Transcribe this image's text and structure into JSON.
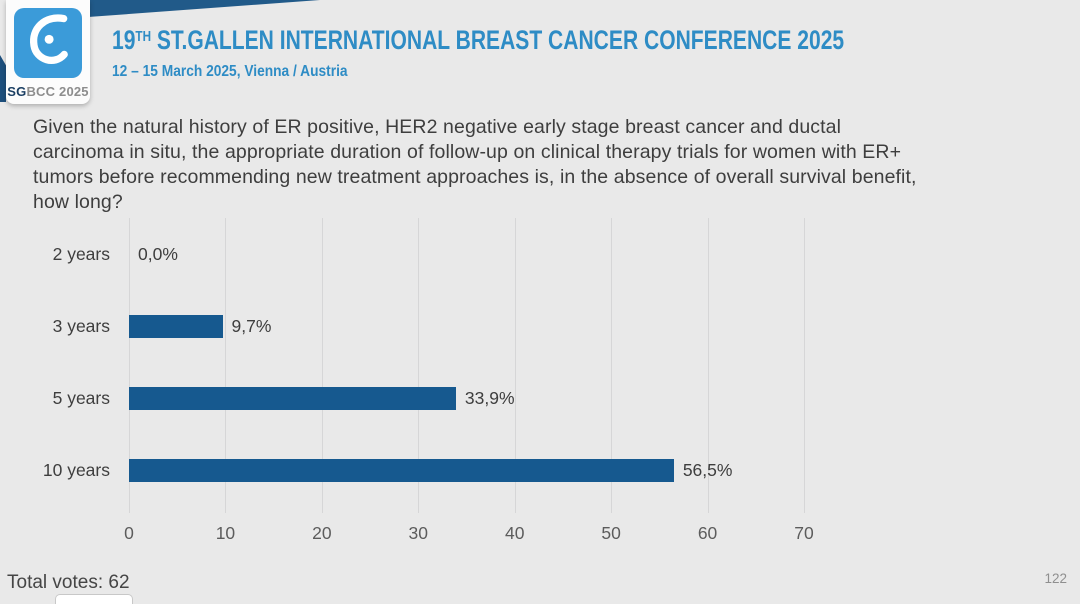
{
  "header": {
    "logo": {
      "text_bold": "SG",
      "text_rest": "BCC 2025"
    },
    "title_prefix": "19",
    "title_superscript": "TH",
    "title_main": " ST.GALLEN INTERNATIONAL BREAST CANCER CONFERENCE 2025",
    "subtitle": "12 – 15 March 2025, Vienna / Austria"
  },
  "question": {
    "lines": [
      "Given the natural history of ER positive, HER2 negative early stage breast cancer and ductal",
      "carcinoma in situ, the appropriate duration of follow-up on clinical therapy trials for women with ER+",
      "tumors before recommending new treatment approaches is, in the absence of overall survival benefit,",
      "how long?"
    ]
  },
  "chart_data": {
    "type": "bar",
    "orientation": "horizontal",
    "title": "",
    "xlabel": "",
    "ylabel": "",
    "categories": [
      "2 years",
      "3 years",
      "5 years",
      "10 years"
    ],
    "values": [
      0.0,
      9.7,
      33.9,
      56.5
    ],
    "value_labels": [
      "0,0%",
      "9,7%",
      "33,9%",
      "56,5%"
    ],
    "x_ticks": [
      0,
      10,
      20,
      30,
      40,
      50,
      60,
      70
    ],
    "xlim": [
      0,
      70
    ],
    "grid": true,
    "legend": false,
    "bar_color": "#16598f"
  },
  "footer": {
    "total_votes": "Total votes: 62",
    "slide_number": "122"
  },
  "colors": {
    "background": "#e9e9e9",
    "accent_blue": "#2e8cc5",
    "logo_blue": "#3b9bd9",
    "ribbon_navy": "#215a89",
    "bar_blue": "#16598f"
  }
}
